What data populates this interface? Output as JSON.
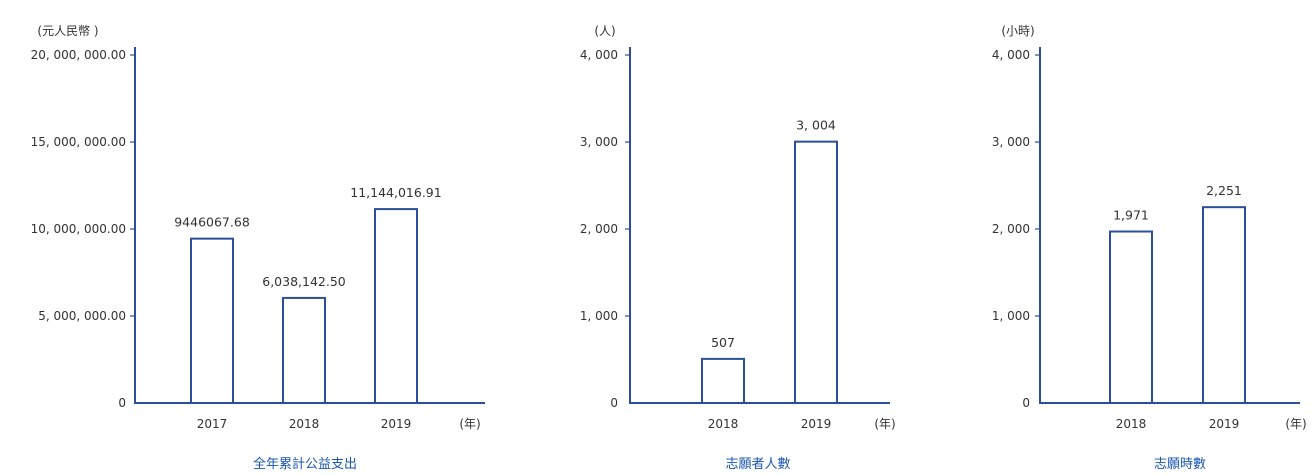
{
  "colors": {
    "bar_stroke": "#2b4f9a",
    "bar_fill": "#ffffff",
    "axis": "#2b4f9a",
    "title": "#1a56b0",
    "text": "#333333"
  },
  "chart_data": [
    {
      "type": "bar",
      "title": "全年累計公益支出",
      "ylabel": "(元人民幣 )",
      "xunit": "(年)",
      "categories": [
        "2017",
        "2018",
        "2019"
      ],
      "values": [
        9446067.68,
        6038142.5,
        11144016.91
      ],
      "value_labels": [
        "9446067.68",
        "6,038,142.50",
        "11,144,016.91"
      ],
      "ylim": [
        0,
        20000000
      ],
      "yticks": [
        0,
        5000000,
        10000000,
        15000000,
        20000000
      ],
      "ytick_labels": [
        "0",
        "5, 000, 000.00",
        "10, 000, 000.00",
        "15, 000, 000.00",
        "20, 000, 000.00"
      ],
      "grid": false,
      "legend": "none"
    },
    {
      "type": "bar",
      "title": "志願者人數",
      "ylabel": "(人)",
      "xunit": "(年)",
      "categories": [
        "2018",
        "2019"
      ],
      "values": [
        507,
        3004
      ],
      "value_labels": [
        "507",
        "3, 004"
      ],
      "ylim": [
        0,
        4000
      ],
      "yticks": [
        0,
        1000,
        2000,
        3000,
        4000
      ],
      "ytick_labels": [
        "0",
        "1, 000",
        "2, 000",
        "3, 000",
        "4, 000"
      ],
      "grid": false,
      "legend": "none"
    },
    {
      "type": "bar",
      "title": "志願時數",
      "ylabel": "(小時)",
      "xunit": "(年)",
      "categories": [
        "2018",
        "2019"
      ],
      "values": [
        1971,
        2251
      ],
      "value_labels": [
        "1,971",
        "2,251"
      ],
      "ylim": [
        0,
        4000
      ],
      "yticks": [
        0,
        1000,
        2000,
        3000,
        4000
      ],
      "ytick_labels": [
        "0",
        "1, 000",
        "2, 000",
        "3, 000",
        "4, 000"
      ],
      "grid": false,
      "legend": "none"
    }
  ]
}
